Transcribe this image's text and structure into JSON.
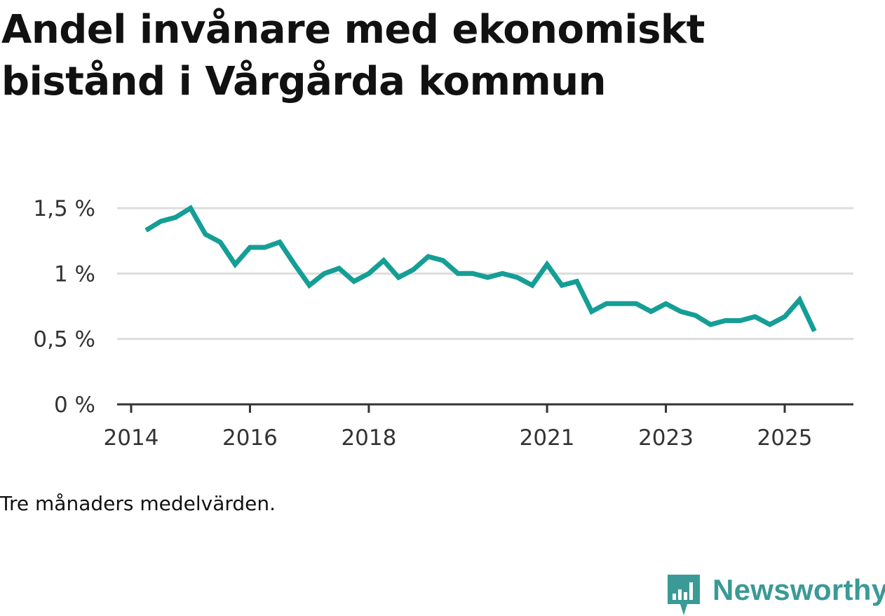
{
  "title": "Andel invånare med ekonomiskt bistånd i Vårgårda kommun",
  "note": "Tre månaders medelvärden.",
  "brand": {
    "name": "Newsworthy",
    "icon": "newsworthy-logo-icon",
    "color": "#3a9a97"
  },
  "colors": {
    "line": "#159e96",
    "grid": "#dddddd",
    "axis": "#333333",
    "text": "#333333"
  },
  "chart_data": {
    "type": "line",
    "title": "Andel invånare med ekonomiskt bistånd i Vårgårda kommun",
    "xlabel": "",
    "ylabel": "",
    "ylim": [
      0,
      1.5
    ],
    "yticks": [
      0,
      0.5,
      1,
      1.5
    ],
    "ytick_labels": [
      "0 %",
      "0,5 %",
      "1 %",
      "1,5 %"
    ],
    "xticks": [
      2014,
      2016,
      2018,
      2021,
      2023,
      2025
    ],
    "xtick_labels": [
      "2014",
      "2016",
      "2018",
      "2021",
      "2023",
      "2025"
    ],
    "grid": true,
    "series": [
      {
        "name": "Andel invånare med ekonomiskt bistånd",
        "x": [
          2014.25,
          2014.5,
          2014.75,
          2015.0,
          2015.25,
          2015.5,
          2015.75,
          2016.0,
          2016.25,
          2016.5,
          2016.75,
          2017.0,
          2017.25,
          2017.5,
          2017.75,
          2018.0,
          2018.25,
          2018.5,
          2018.75,
          2019.0,
          2019.25,
          2019.5,
          2019.75,
          2020.0,
          2020.25,
          2020.5,
          2020.75,
          2021.0,
          2021.25,
          2021.5,
          2021.75,
          2022.0,
          2022.25,
          2022.5,
          2022.75,
          2023.0,
          2023.25,
          2023.5,
          2023.75,
          2024.0,
          2024.25,
          2024.5,
          2024.75,
          2025.0,
          2025.25,
          2025.5
        ],
        "values": [
          1.33,
          1.4,
          1.43,
          1.5,
          1.3,
          1.24,
          1.07,
          1.2,
          1.2,
          1.24,
          1.07,
          0.91,
          1.0,
          1.04,
          0.94,
          1.0,
          1.1,
          0.97,
          1.03,
          1.13,
          1.1,
          1.0,
          1.0,
          0.97,
          1.0,
          0.97,
          0.91,
          1.07,
          0.91,
          0.94,
          0.71,
          0.77,
          0.77,
          0.77,
          0.71,
          0.77,
          0.71,
          0.68,
          0.61,
          0.64,
          0.64,
          0.67,
          0.61,
          0.67,
          0.8,
          0.56
        ]
      }
    ]
  }
}
